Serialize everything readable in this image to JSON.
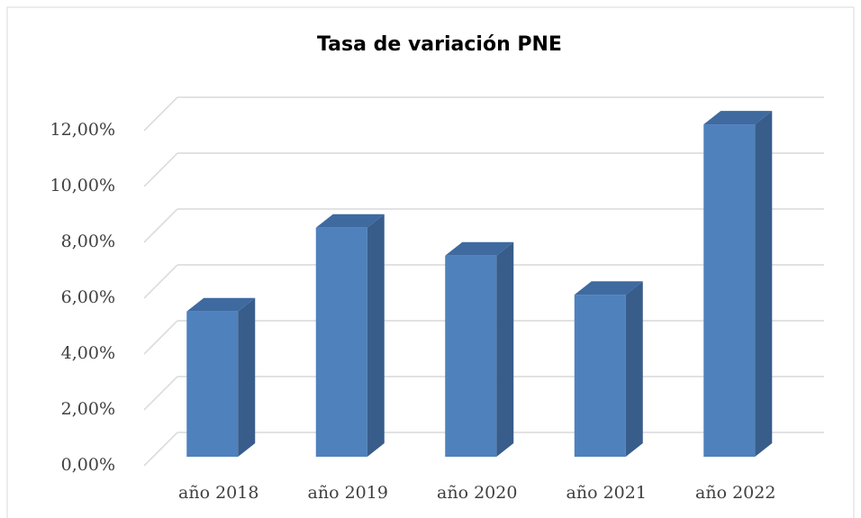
{
  "chart_data": {
    "type": "bar3d",
    "title": "Tasa de variación PNE",
    "categories": [
      "año 2018",
      "año 2019",
      "año 2020",
      "año 2021",
      "año 2022"
    ],
    "values": [
      5.2,
      8.2,
      7.2,
      5.8,
      11.9
    ],
    "color": "#4f81bd",
    "ylim": [
      0,
      12
    ],
    "yticks": [
      {
        "value": 0,
        "label": "0,00%"
      },
      {
        "value": 2,
        "label": "2,00%"
      },
      {
        "value": 4,
        "label": "4,00%"
      },
      {
        "value": 6,
        "label": "6,00%"
      },
      {
        "value": 8,
        "label": "8,00%"
      },
      {
        "value": 10,
        "label": "10,00%"
      },
      {
        "value": 12,
        "label": "12,00%"
      }
    ],
    "grid": true
  }
}
